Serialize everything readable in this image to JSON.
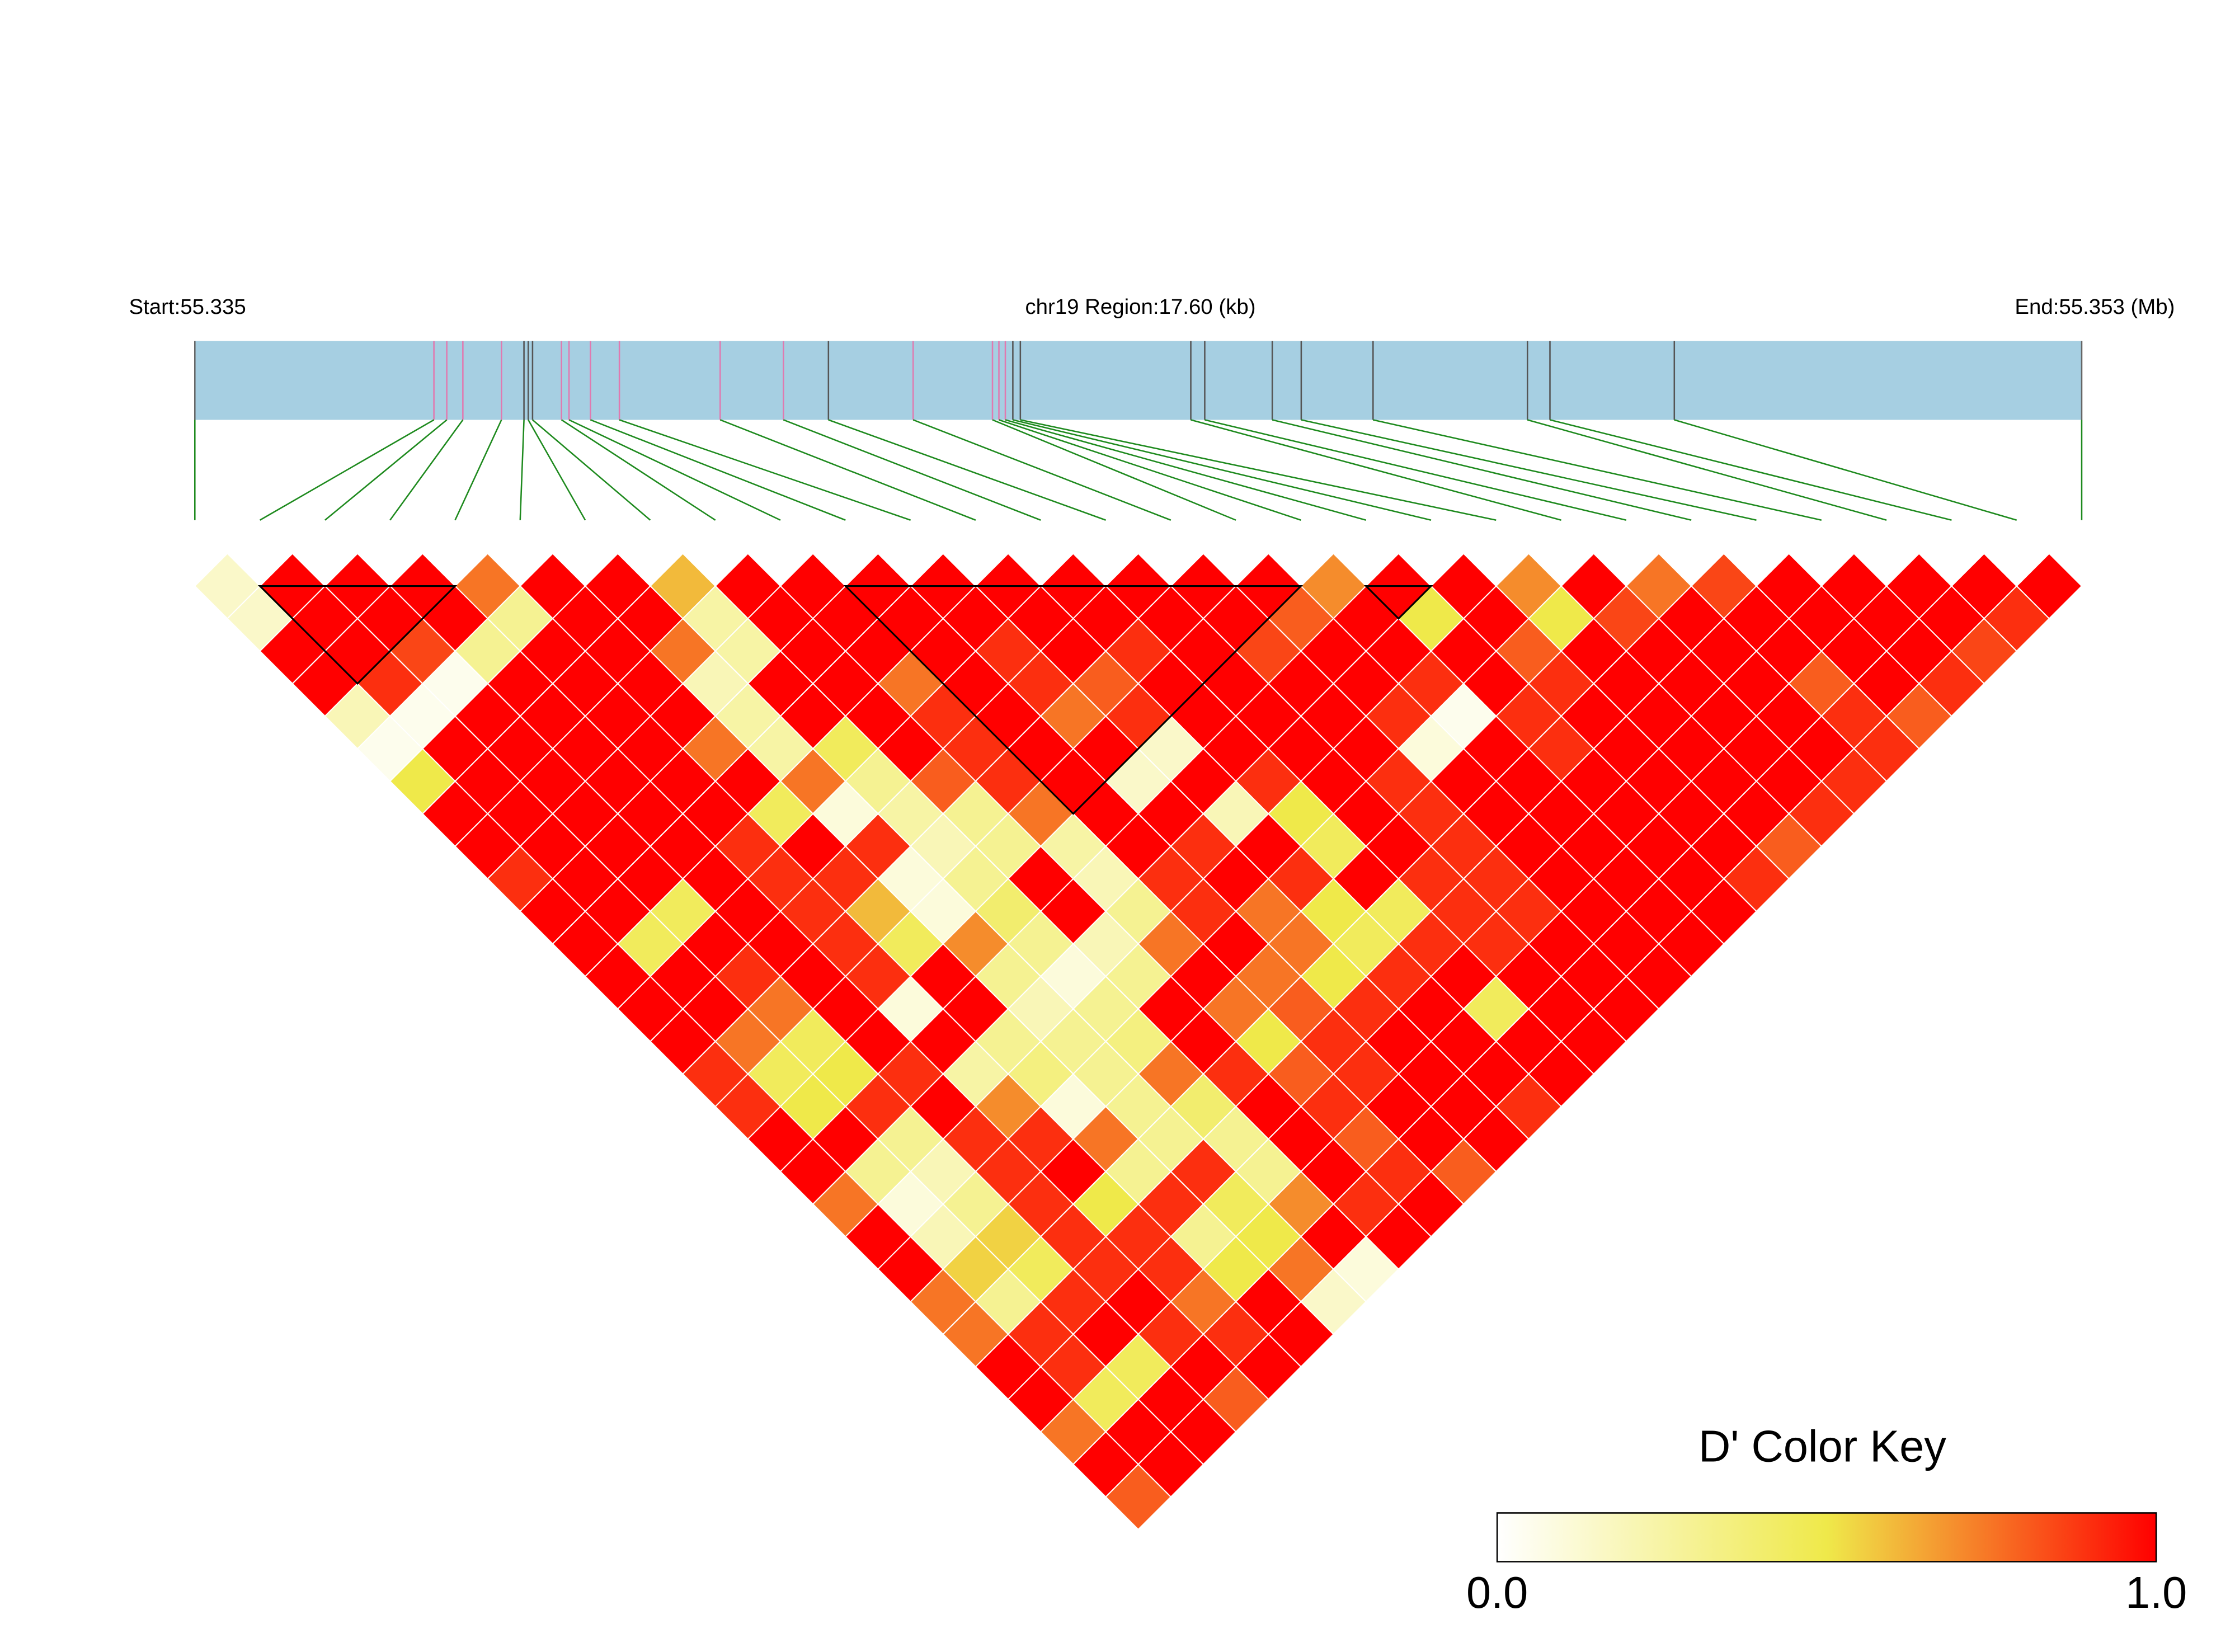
{
  "chart_data": {
    "type": "ld_heatmap",
    "start_label": "Start:55.335",
    "region_label": "chr19 Region:17.60 (kb)",
    "end_label": "End:55.353 (Mb)",
    "xlim": [
      0,
      17.6
    ],
    "strip_color": "#a6cfe2",
    "link_color": "#1e8a1e",
    "snp_positions_kb": [
      0,
      2.23,
      2.35,
      2.5,
      2.86,
      3.07,
      3.11,
      3.15,
      3.42,
      3.49,
      3.69,
      3.96,
      4.9,
      5.49,
      5.91,
      6.7,
      7.44,
      7.5,
      7.56,
      7.63,
      7.7,
      9.29,
      9.42,
      10.05,
      10.32,
      10.99,
      12.43,
      12.64,
      13.8,
      17.6
    ],
    "snp_line_colors": [
      "#666666",
      "#e07ab0",
      "#e07ab0",
      "#e07ab0",
      "#e07ab0",
      "#555555",
      "#555555",
      "#555555",
      "#e07ab0",
      "#e07ab0",
      "#e07ab0",
      "#e07ab0",
      "#e07ab0",
      "#e07ab0",
      "#555555",
      "#e07ab0",
      "#e07ab0",
      "#e07ab0",
      "#e07ab0",
      "#555555",
      "#555555",
      "#555555",
      "#555555",
      "#555555",
      "#555555",
      "#555555",
      "#555555",
      "#555555",
      "#555555",
      "#666666"
    ],
    "dprime": [
      [
        0.15,
        1,
        1,
        1,
        0.75,
        1,
        1,
        0.6,
        1,
        1,
        1,
        1,
        1,
        1,
        1,
        1,
        1,
        0.7,
        1,
        1,
        0.7,
        1,
        0.75,
        0.85,
        1,
        1,
        1,
        1,
        1
      ],
      [
        0.15,
        1,
        1,
        1,
        0.3,
        1,
        1,
        0.25,
        1,
        1,
        1,
        1,
        1,
        1,
        1,
        1,
        0.8,
        1,
        0.5,
        1,
        0.5,
        0.85,
        1,
        1,
        1,
        1,
        1,
        0.9
      ],
      [
        1,
        1,
        0.85,
        0.3,
        1,
        1,
        0.75,
        0.25,
        1,
        1,
        1,
        0.9,
        1,
        0.9,
        1,
        0.85,
        1,
        1,
        1,
        0.8,
        1,
        1,
        1,
        1,
        1,
        1,
        0.85
      ],
      [
        1,
        0.9,
        0.05,
        1,
        1,
        1,
        0.2,
        1,
        1,
        0.75,
        1,
        0.9,
        0.8,
        1,
        1,
        1,
        1,
        0.9,
        1,
        0.9,
        1,
        1,
        1,
        0.8,
        1,
        0.9
      ],
      [
        0.2,
        0.05,
        1,
        1,
        1,
        1,
        0.25,
        1,
        1,
        0.9,
        1,
        0.75,
        0.9,
        1,
        1,
        1,
        0.9,
        0.05,
        0.9,
        1,
        1,
        1,
        1,
        0.9,
        0.8
      ],
      [
        0.05,
        1,
        1,
        1,
        1,
        0.75,
        0.25,
        0.45,
        1,
        0.9,
        1,
        1,
        0.15,
        1,
        1,
        1,
        0.1,
        1,
        0.9,
        1,
        1,
        1,
        1,
        0.9
      ],
      [
        0.5,
        1,
        1,
        1,
        1,
        1,
        0.75,
        0.3,
        0.8,
        0.9,
        1,
        0.15,
        1,
        0.9,
        1,
        0.9,
        1,
        1,
        1,
        1,
        1,
        1,
        0.9
      ],
      [
        1,
        1,
        1,
        1,
        1,
        0.45,
        0.1,
        0.25,
        0.3,
        0.75,
        1,
        1,
        0.2,
        0.5,
        1,
        0.9,
        1,
        1,
        1,
        1,
        1,
        0.9
      ],
      [
        1,
        1,
        1,
        1,
        0.9,
        1,
        0.9,
        0.2,
        0.3,
        0.25,
        1,
        0.9,
        1,
        0.45,
        1,
        0.9,
        1,
        1,
        1,
        1,
        0.8
      ],
      [
        0.9,
        1,
        1,
        1,
        0.9,
        0.9,
        0.1,
        0.3,
        1,
        0.2,
        0.9,
        1,
        0.9,
        1,
        0.9,
        0.9,
        1,
        1,
        1,
        0.9
      ],
      [
        1,
        1,
        0.45,
        1,
        0.9,
        0.6,
        0.1,
        0.4,
        1,
        0.3,
        0.9,
        0.75,
        0.5,
        0.45,
        0.9,
        0.9,
        1,
        1,
        1
      ],
      [
        1,
        0.45,
        1,
        1,
        0.9,
        0.45,
        0.7,
        0.3,
        0.2,
        0.75,
        1,
        0.75,
        0.45,
        0.9,
        0.9,
        1,
        1,
        1
      ],
      [
        1,
        1,
        0.9,
        1,
        0.9,
        1,
        0.3,
        0.1,
        0.3,
        1,
        0.75,
        0.5,
        0.9,
        1,
        1,
        1,
        1
      ],
      [
        1,
        1,
        0.75,
        1,
        0.1,
        1,
        0.2,
        0.3,
        1,
        0.75,
        0.8,
        0.9,
        1,
        0.45,
        1,
        1
      ],
      [
        1,
        0.75,
        0.45,
        1,
        1,
        0.3,
        0.3,
        0.35,
        1,
        0.5,
        0.9,
        1,
        1,
        1,
        1
      ],
      [
        0.9,
        0.45,
        0.5,
        0.9,
        0.25,
        0.35,
        0.3,
        0.75,
        0.9,
        0.8,
        0.9,
        1,
        1,
        1
      ],
      [
        0.9,
        0.5,
        0.9,
        1,
        0.7,
        0.1,
        0.3,
        0.4,
        1,
        0.9,
        1,
        1,
        0.9
      ],
      [
        1,
        1,
        0.3,
        0.9,
        0.9,
        0.75,
        0.3,
        0.3,
        1,
        0.8,
        1,
        1
      ],
      [
        1,
        0.3,
        0.2,
        0.9,
        1,
        0.3,
        0.9,
        0.3,
        1,
        0.9,
        0.8
      ],
      [
        0.75,
        0.1,
        0.3,
        0.9,
        0.5,
        0.9,
        0.45,
        0.7,
        0.9,
        1
      ],
      [
        1,
        0.2,
        0.55,
        0.9,
        0.9,
        0.3,
        0.5,
        1,
        1
      ],
      [
        1,
        0.55,
        0.45,
        0.9,
        0.9,
        0.5,
        0.75,
        0.1
      ],
      [
        0.75,
        0.3,
        0.9,
        1,
        0.75,
        1,
        0.15
      ],
      [
        0.75,
        0.9,
        1,
        0.9,
        0.9,
        1
      ],
      [
        1,
        0.9,
        0.45,
        1,
        1
      ],
      [
        1,
        0.45,
        1,
        0.8
      ],
      [
        0.75,
        1,
        1
      ],
      [
        1,
        1
      ],
      [
        0.8
      ]
    ],
    "blocks": [
      [
        1,
        4
      ],
      [
        10,
        17
      ],
      [
        18,
        19
      ]
    ],
    "block_color": "#000000",
    "color_key": {
      "title": "D' Color Key",
      "colors": [
        "#ffffff",
        "#efe94a",
        "#ff0000"
      ],
      "ticks": [
        {
          "value": 0,
          "label": "0.0"
        },
        {
          "value": 1,
          "label": "1.0"
        }
      ]
    }
  }
}
